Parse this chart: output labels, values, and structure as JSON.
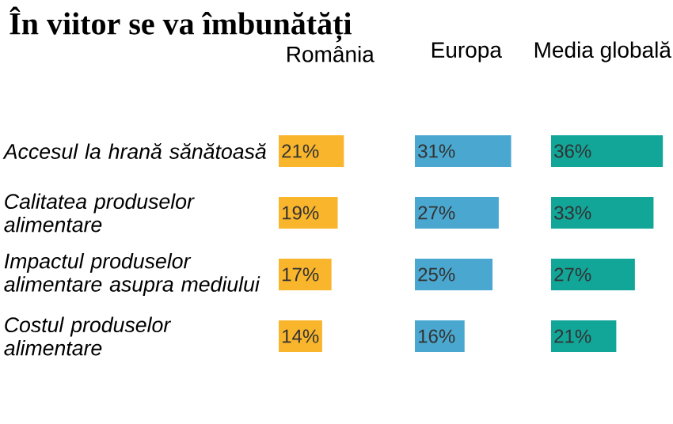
{
  "chart_data": [
    {
      "type": "bar",
      "orientation": "horizontal",
      "title": "În viitor se va îmbunătăți",
      "categories": [
        "Accesul la hrană sănătoasă",
        "Calitatea produselor alimentare",
        "Impactul produselor alimentare asupra mediului",
        "Costul produselor alimentare"
      ],
      "series": [
        {
          "name": "România",
          "color": "#f9b52b",
          "values": [
            21,
            19,
            17,
            14
          ],
          "value_labels": [
            "21%",
            "19%",
            "17%",
            "14%"
          ]
        }
      ]
    },
    {
      "type": "bar",
      "orientation": "horizontal",
      "categories": [
        null,
        null,
        null,
        null
      ],
      "series": [
        {
          "name": "Europa",
          "color": "#4aa8d0",
          "values": [
            31,
            27,
            25,
            16
          ],
          "value_labels": [
            "31%",
            "27%",
            "25%",
            "16%"
          ]
        }
      ]
    },
    {
      "type": "bar",
      "orientation": "horizontal",
      "categories": [
        null,
        null,
        null,
        null
      ],
      "series": [
        {
          "name": "Media globală",
          "color": "#12a699",
          "values": [
            36,
            33,
            27,
            21
          ],
          "value_labels": [
            "36%",
            "33%",
            "27%",
            "21%"
          ]
        }
      ]
    }
  ]
}
